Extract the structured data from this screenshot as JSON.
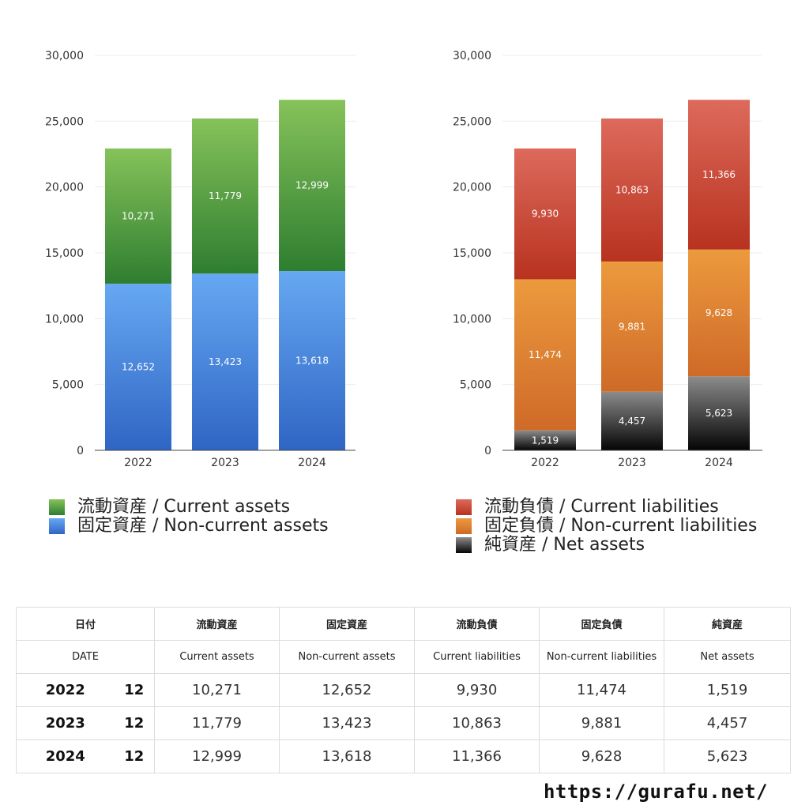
{
  "chart_data": [
    {
      "type": "bar",
      "stacked": true,
      "categories": [
        "2022",
        "2023",
        "2024"
      ],
      "ylim": [
        0,
        30000
      ],
      "yticks": [
        "0",
        "5,000",
        "10,000",
        "15,000",
        "20,000",
        "25,000",
        "30,000"
      ],
      "grid": true,
      "legend_position": "bottom-left",
      "series": [
        {
          "name": "固定資産 / Non-current assets",
          "values": [
            12652,
            13423,
            13618
          ],
          "labels": [
            "12,652",
            "13,423",
            "13,618"
          ],
          "color_top": "#66a8f2",
          "color_bottom": "#2f65c4"
        },
        {
          "name": "流動資産 / Current assets",
          "values": [
            10271,
            11779,
            12999
          ],
          "labels": [
            "10,271",
            "11,779",
            "12,999"
          ],
          "color_top": "#86c25a",
          "color_bottom": "#2e7e30"
        }
      ],
      "legend_order": [
        1,
        0
      ]
    },
    {
      "type": "bar",
      "stacked": true,
      "categories": [
        "2022",
        "2023",
        "2024"
      ],
      "ylim": [
        0,
        30000
      ],
      "yticks": [
        "0",
        "5,000",
        "10,000",
        "15,000",
        "20,000",
        "25,000",
        "30,000"
      ],
      "grid": true,
      "legend_position": "bottom-right",
      "series": [
        {
          "name": "純資産 / Net assets",
          "values": [
            1519,
            4457,
            5623
          ],
          "labels": [
            "1,519",
            "4,457",
            "5,623"
          ],
          "color_top": "#8c8c8c",
          "color_bottom": "#050505"
        },
        {
          "name": "固定負債 / Non-current liabilities",
          "values": [
            11474,
            9881,
            9628
          ],
          "labels": [
            "11,474",
            "9,881",
            "9,628"
          ],
          "color_top": "#ec9a3e",
          "color_bottom": "#cf6a28"
        },
        {
          "name": "流動負債 / Current liabilities",
          "values": [
            9930,
            10863,
            11366
          ],
          "labels": [
            "9,930",
            "10,863",
            "11,366"
          ],
          "color_top": "#dd6a5c",
          "color_bottom": "#b8321f"
        }
      ],
      "legend_order": [
        2,
        1,
        0
      ]
    }
  ],
  "table": {
    "header_jp": {
      "date": "日付",
      "current_assets": "流動資産",
      "noncurrent_assets": "固定資産",
      "current_liabilities": "流動負債",
      "noncurrent_liabilities": "固定負債",
      "net_assets": "純資産"
    },
    "header_en": {
      "date": "DATE",
      "current_assets": "Current assets",
      "noncurrent_assets": "Non-current assets",
      "current_liabilities": "Current liabilities",
      "noncurrent_liabilities": "Non-current liabilities",
      "net_assets": "Net assets"
    },
    "rows": [
      {
        "year": "2022",
        "month": "12",
        "current_assets": "10,271",
        "noncurrent_assets": "12,652",
        "current_liabilities": "9,930",
        "noncurrent_liabilities": "11,474",
        "net_assets": "1,519"
      },
      {
        "year": "2023",
        "month": "12",
        "current_assets": "11,779",
        "noncurrent_assets": "13,423",
        "current_liabilities": "10,863",
        "noncurrent_liabilities": "9,881",
        "net_assets": "4,457"
      },
      {
        "year": "2024",
        "month": "12",
        "current_assets": "12,999",
        "noncurrent_assets": "13,618",
        "current_liabilities": "11,366",
        "noncurrent_liabilities": "9,628",
        "net_assets": "5,623"
      }
    ]
  },
  "footer": {
    "url": "https://gurafu.net/"
  }
}
